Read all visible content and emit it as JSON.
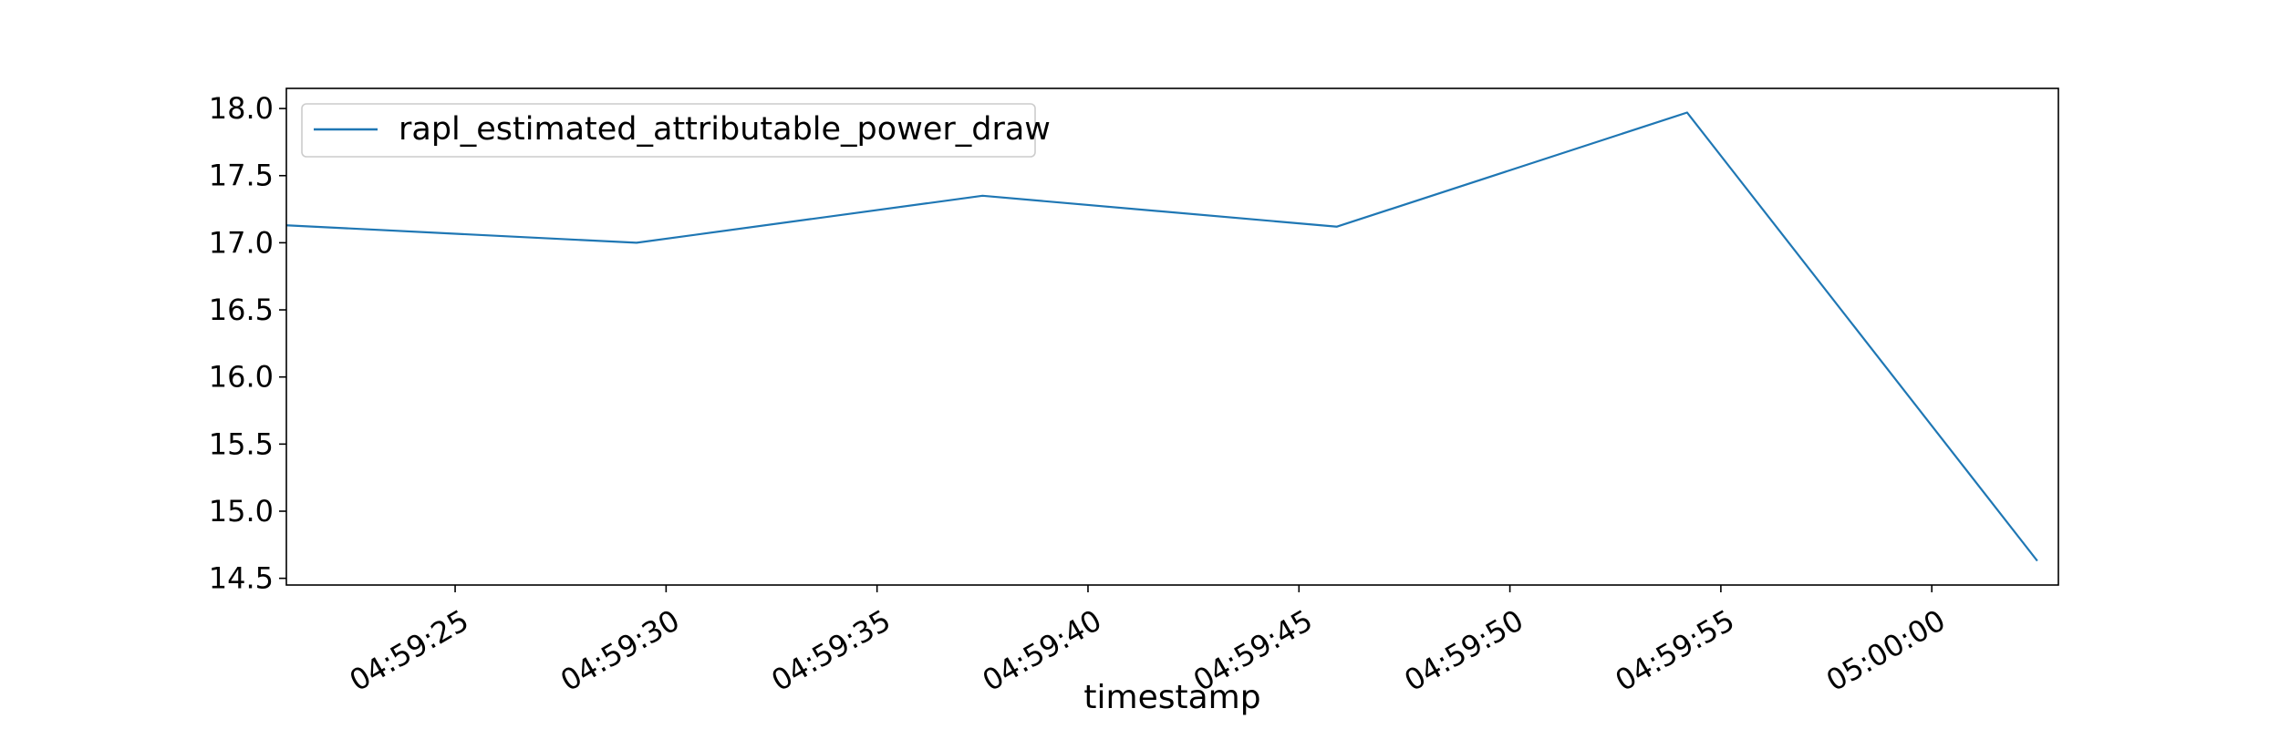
{
  "chart_data": {
    "type": "line",
    "title": "",
    "xlabel": "timestamp",
    "ylabel": "",
    "x_axis": {
      "kind": "time",
      "range": [
        "04:59:21",
        "05:00:03"
      ],
      "ticks": [
        {
          "time": "04:59:25",
          "label": "04:59:25"
        },
        {
          "time": "04:59:30",
          "label": "04:59:30"
        },
        {
          "time": "04:59:35",
          "label": "04:59:35"
        },
        {
          "time": "04:59:40",
          "label": "04:59:40"
        },
        {
          "time": "04:59:45",
          "label": "04:59:45"
        },
        {
          "time": "04:59:50",
          "label": "04:59:50"
        },
        {
          "time": "04:59:55",
          "label": "04:59:55"
        },
        {
          "time": "05:00:00",
          "label": "05:00:00"
        }
      ]
    },
    "ylim": [
      14.45,
      18.15
    ],
    "yticks": [
      {
        "value": 14.5,
        "label": "14.5"
      },
      {
        "value": 15.0,
        "label": "15.0"
      },
      {
        "value": 15.5,
        "label": "15.5"
      },
      {
        "value": 16.0,
        "label": "16.0"
      },
      {
        "value": 16.5,
        "label": "16.5"
      },
      {
        "value": 17.0,
        "label": "17.0"
      },
      {
        "value": 17.5,
        "label": "17.5"
      },
      {
        "value": 18.0,
        "label": "18.0"
      }
    ],
    "grid": false,
    "legend_position": "top-left",
    "series": [
      {
        "name": "rapl_estimated_attributable_power_draw",
        "color": "#1f77b4",
        "points": [
          {
            "x": "04:59:21",
            "y": 17.13
          },
          {
            "x": "04:59:29.3",
            "y": 17.0
          },
          {
            "x": "04:59:37.5",
            "y": 17.35
          },
          {
            "x": "04:59:45.9",
            "y": 17.12
          },
          {
            "x": "04:59:54.2",
            "y": 17.97
          },
          {
            "x": "05:00:02.5",
            "y": 14.63
          }
        ]
      }
    ]
  }
}
